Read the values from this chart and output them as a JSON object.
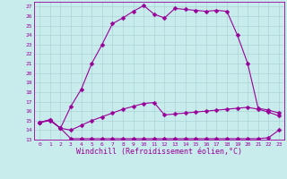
{
  "xlabel": "Windchill (Refroidissement éolien,°C)",
  "bg_color": "#c8ecec",
  "grid_color": "#aad4d4",
  "line_color": "#990099",
  "xlim": [
    -0.5,
    23.5
  ],
  "ylim": [
    13,
    27.5
  ],
  "xticks": [
    0,
    1,
    2,
    3,
    4,
    5,
    6,
    7,
    8,
    9,
    10,
    11,
    12,
    13,
    14,
    15,
    16,
    17,
    18,
    19,
    20,
    21,
    22,
    23
  ],
  "yticks": [
    13,
    14,
    15,
    16,
    17,
    18,
    19,
    20,
    21,
    22,
    23,
    24,
    25,
    26,
    27
  ],
  "line1_x": [
    0,
    1,
    2,
    3,
    4,
    5,
    6,
    7,
    8,
    9,
    10,
    11,
    12,
    13,
    14,
    15,
    16,
    17,
    18,
    19,
    20,
    21,
    22,
    23
  ],
  "line1_y": [
    14.8,
    15.1,
    14.2,
    13.1,
    13.1,
    13.1,
    13.1,
    13.1,
    13.1,
    13.1,
    13.1,
    13.1,
    13.1,
    13.1,
    13.1,
    13.1,
    13.1,
    13.1,
    13.1,
    13.1,
    13.1,
    13.1,
    13.2,
    14.0
  ],
  "line2_x": [
    0,
    1,
    2,
    3,
    4,
    5,
    6,
    7,
    8,
    9,
    10,
    11,
    12,
    13,
    14,
    15,
    16,
    17,
    18,
    19,
    20,
    21,
    22,
    23
  ],
  "line2_y": [
    14.8,
    15.0,
    14.2,
    14.0,
    14.5,
    15.0,
    15.4,
    15.8,
    16.2,
    16.5,
    16.8,
    16.9,
    15.6,
    15.7,
    15.8,
    15.9,
    16.0,
    16.1,
    16.2,
    16.3,
    16.4,
    16.2,
    15.9,
    15.5
  ],
  "line3_x": [
    0,
    1,
    2,
    3,
    4,
    5,
    6,
    7,
    8,
    9,
    10,
    11,
    12,
    13,
    14,
    15,
    16,
    17,
    18,
    19,
    20,
    21,
    22,
    23
  ],
  "line3_y": [
    14.8,
    15.1,
    14.2,
    16.5,
    18.3,
    21.0,
    23.0,
    25.2,
    25.8,
    26.5,
    27.1,
    26.2,
    25.8,
    26.8,
    26.7,
    26.6,
    26.5,
    26.6,
    26.5,
    24.0,
    21.0,
    16.3,
    16.1,
    15.8
  ],
  "marker": "D",
  "marker_size": 2.5,
  "linewidth": 0.8,
  "tick_fontsize": 4.5,
  "label_fontsize": 6.0
}
